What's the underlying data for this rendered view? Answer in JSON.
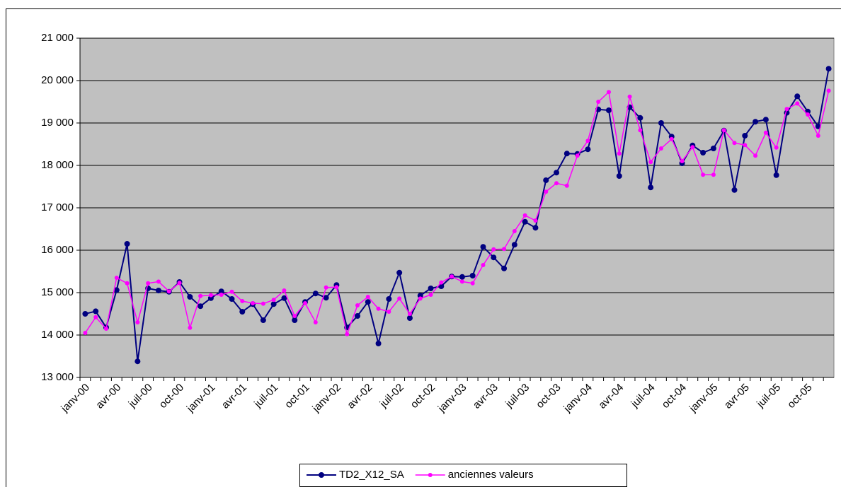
{
  "chart_data": {
    "type": "line",
    "categories": [
      "janv-00",
      null,
      null,
      "avr-00",
      null,
      null,
      "juil-00",
      null,
      null,
      "oct-00",
      null,
      null,
      "janv-01",
      null,
      null,
      "avr-01",
      null,
      null,
      "juil-01",
      null,
      null,
      "oct-01",
      null,
      null,
      "janv-02",
      null,
      null,
      "avr-02",
      null,
      null,
      "juil-02",
      null,
      null,
      "oct-02",
      null,
      null,
      "janv-03",
      null,
      null,
      "avr-03",
      null,
      null,
      "juil-03",
      null,
      null,
      "oct-03",
      null,
      null,
      "janv-04",
      null,
      null,
      "avr-04",
      null,
      null,
      "juil-04",
      null,
      null,
      "oct-04",
      null,
      null,
      "janv-05",
      null,
      null,
      "avr-05",
      null,
      null,
      "juil-05",
      null,
      null,
      "oct-05",
      null,
      null
    ],
    "series": [
      {
        "name": "TD2_X12_SA",
        "color": "#000080",
        "values": [
          14500,
          14560,
          14180,
          15060,
          16150,
          13380,
          15100,
          15050,
          15020,
          15250,
          14900,
          14680,
          14870,
          15030,
          14850,
          14550,
          14730,
          14350,
          14730,
          14870,
          14350,
          14780,
          14980,
          14880,
          15180,
          14180,
          14450,
          14780,
          13800,
          14850,
          15470,
          14400,
          14930,
          15100,
          15150,
          15380,
          15370,
          15400,
          16080,
          15830,
          15570,
          16130,
          16670,
          16530,
          17650,
          17830,
          18280,
          18270,
          18380,
          19320,
          19300,
          17750,
          19370,
          19120,
          17480,
          19000,
          18680,
          18050,
          18470,
          18300,
          18400,
          18820,
          17420,
          18700,
          19030,
          19080,
          17770,
          19240,
          19630,
          19270,
          18920,
          20280
        ]
      },
      {
        "name": "anciennes valeurs",
        "color": "#ff00ff",
        "values": [
          14050,
          14420,
          14150,
          15350,
          15220,
          14300,
          15220,
          15260,
          15030,
          15230,
          14170,
          14920,
          14940,
          14950,
          15020,
          14800,
          14750,
          14740,
          14830,
          15050,
          14450,
          14750,
          14300,
          15120,
          15130,
          14020,
          14700,
          14900,
          14620,
          14550,
          14860,
          14500,
          14860,
          14950,
          15240,
          15380,
          15260,
          15220,
          15650,
          16020,
          16030,
          16450,
          16820,
          16700,
          17380,
          17580,
          17520,
          18230,
          18580,
          19500,
          19730,
          18280,
          19620,
          18830,
          18080,
          18400,
          18620,
          18100,
          18430,
          17780,
          17780,
          18830,
          18530,
          18480,
          18230,
          18770,
          18420,
          19330,
          19460,
          19200,
          18700,
          19760
        ]
      }
    ],
    "ylim": [
      13000,
      21000
    ],
    "yticks": [
      {
        "value": 13000,
        "label": "13 000"
      },
      {
        "value": 14000,
        "label": "14 000"
      },
      {
        "value": 15000,
        "label": "15 000"
      },
      {
        "value": 16000,
        "label": "16 000"
      },
      {
        "value": 17000,
        "label": "17 000"
      },
      {
        "value": 18000,
        "label": "18 000"
      },
      {
        "value": 19000,
        "label": "19 000"
      },
      {
        "value": 20000,
        "label": "20 000"
      },
      {
        "value": 21000,
        "label": "21 000"
      }
    ],
    "grid": true,
    "legend": "bottom",
    "plot_background": "#c0c0c0"
  }
}
